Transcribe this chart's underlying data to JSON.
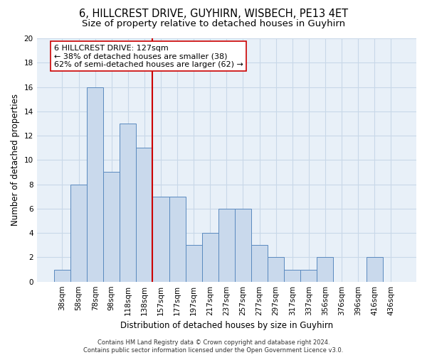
{
  "title": "6, HILLCREST DRIVE, GUYHIRN, WISBECH, PE13 4ET",
  "subtitle": "Size of property relative to detached houses in Guyhirn",
  "xlabel": "Distribution of detached houses by size in Guyhirn",
  "ylabel": "Number of detached properties",
  "categories": [
    "38sqm",
    "58sqm",
    "78sqm",
    "98sqm",
    "118sqm",
    "138sqm",
    "157sqm",
    "177sqm",
    "197sqm",
    "217sqm",
    "237sqm",
    "257sqm",
    "277sqm",
    "297sqm",
    "317sqm",
    "337sqm",
    "356sqm",
    "376sqm",
    "396sqm",
    "416sqm",
    "436sqm"
  ],
  "values": [
    1,
    8,
    16,
    9,
    13,
    11,
    7,
    7,
    3,
    4,
    6,
    6,
    3,
    2,
    1,
    1,
    2,
    0,
    0,
    2,
    0
  ],
  "bar_color": "#c9d9ec",
  "bar_edge_color": "#5a8abf",
  "grid_color": "#c8d8e8",
  "background_color": "#e8f0f8",
  "vline_x_index": 5.5,
  "vline_color": "#cc0000",
  "annotation_line1": "6 HILLCREST DRIVE: 127sqm",
  "annotation_line2": "← 38% of detached houses are smaller (38)",
  "annotation_line3": "62% of semi-detached houses are larger (62) →",
  "annotation_box_color": "#ffffff",
  "annotation_box_edge": "#cc0000",
  "ylim": [
    0,
    20
  ],
  "yticks": [
    0,
    2,
    4,
    6,
    8,
    10,
    12,
    14,
    16,
    18,
    20
  ],
  "footer": "Contains HM Land Registry data © Crown copyright and database right 2024.\nContains public sector information licensed under the Open Government Licence v3.0.",
  "title_fontsize": 10.5,
  "subtitle_fontsize": 9.5,
  "xlabel_fontsize": 8.5,
  "ylabel_fontsize": 8.5,
  "tick_fontsize": 7.5,
  "annotation_fontsize": 8.0,
  "footer_fontsize": 6.0
}
